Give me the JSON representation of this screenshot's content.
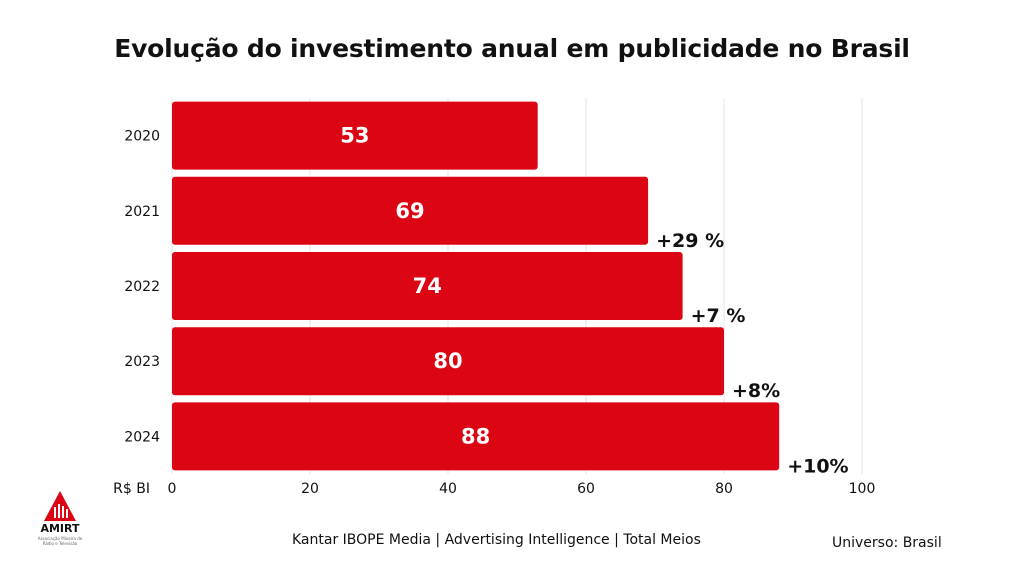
{
  "page": {
    "title": "Evolução do investimento anual em publicidade no Brasil",
    "source": "Kantar IBOPE Media | Advertising Intelligence | Total Meios",
    "universe": "Universo: Brasil",
    "logo": {
      "name": "AMIRT",
      "subtitle": "Associação Mineira de Rádio e Televisão"
    }
  },
  "chart_data": {
    "type": "bar",
    "orientation": "horizontal",
    "title": "Evolução do investimento anual em publicidade no Brasil",
    "categories": [
      "2020",
      "2021",
      "2022",
      "2023",
      "2024"
    ],
    "series": [
      {
        "values": [
          53,
          69,
          74,
          80,
          88
        ],
        "color": "#dc0513"
      }
    ],
    "data_labels": [
      "53",
      "69",
      "74",
      "80",
      "88"
    ],
    "growth_labels": [
      "",
      "+29 %",
      "+7 %",
      "+8%",
      "+10%"
    ],
    "xlabel": "R$ BI",
    "xlim": [
      0,
      100
    ],
    "xticks": [
      0,
      20,
      40,
      60,
      80,
      100
    ],
    "grid": "vertical"
  }
}
